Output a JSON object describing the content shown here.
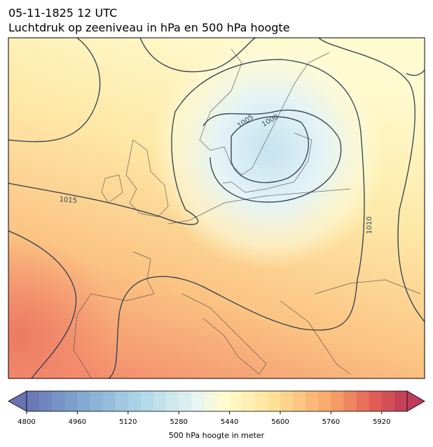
{
  "header": {
    "title_line1": "05-11-1825 12 UTC",
    "title_line2": "Luchtdruk op zeeniveau in hPa en 500 hPa hoogte"
  },
  "contour_labels": [
    "1005",
    "1000",
    "1015",
    "1010"
  ],
  "colorbar": {
    "label": "500 hPa hoogte in meter",
    "lim": [
      4800,
      6000
    ],
    "ticks": [
      4800,
      4960,
      5120,
      5280,
      5440,
      5600,
      5760,
      5920
    ]
  }
}
